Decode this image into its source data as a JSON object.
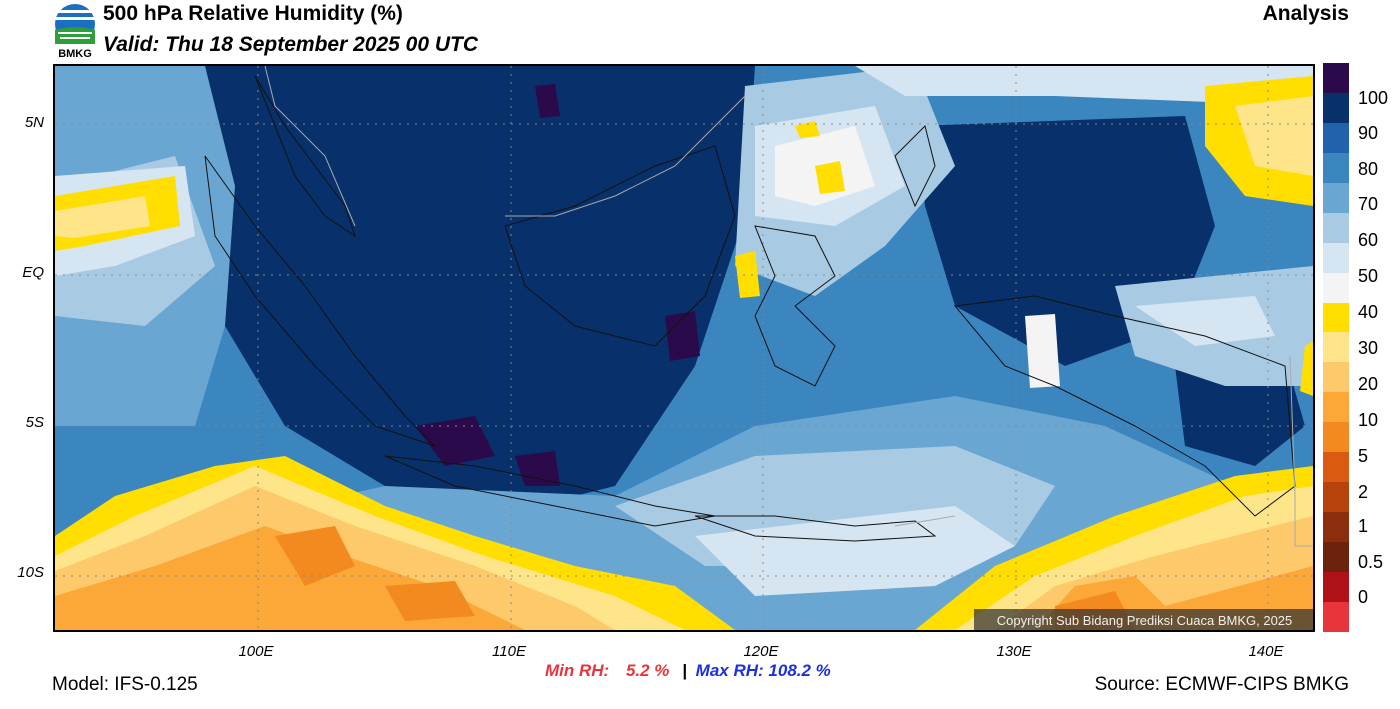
{
  "header": {
    "logo_text": "BMKG",
    "title": "500 hPa Relative Humidity (%)",
    "valid": "Valid: Thu 18 September 2025 00 UTC",
    "analysis": "Analysis"
  },
  "map": {
    "lat_labels": [
      "5N",
      "EQ",
      "5S",
      "10S"
    ],
    "lon_labels": [
      "100E",
      "110E",
      "120E",
      "130E",
      "140E"
    ],
    "copyright": "Copyright Sub Bidang Prediksi Cuaca BMKG, 2025"
  },
  "colorbar": {
    "labels": [
      "100",
      "90",
      "80",
      "70",
      "60",
      "50",
      "40",
      "30",
      "20",
      "10",
      "5",
      "2",
      "1",
      "0.5",
      "0"
    ],
    "colors": [
      "#2a0a4a",
      "#08306b",
      "#2262ad",
      "#3c86c0",
      "#6aa6d2",
      "#a8cbe3",
      "#d5e6f2",
      "#f4f4f4",
      "#ffde00",
      "#ffe58a",
      "#fdc96a",
      "#fba838",
      "#f28a1f",
      "#d95a10",
      "#b8420c",
      "#8a2e0d",
      "#6b240b",
      "#b01018",
      "#e8343b"
    ]
  },
  "stats": {
    "min_label": "Min RH:",
    "min_value": "5.2 %",
    "separator": "|",
    "max_label": "Max RH:",
    "max_value": "108.2 %"
  },
  "footer": {
    "model": "Model: IFS-0.125",
    "source": "Source: ECMWF-CIPS BMKG"
  }
}
